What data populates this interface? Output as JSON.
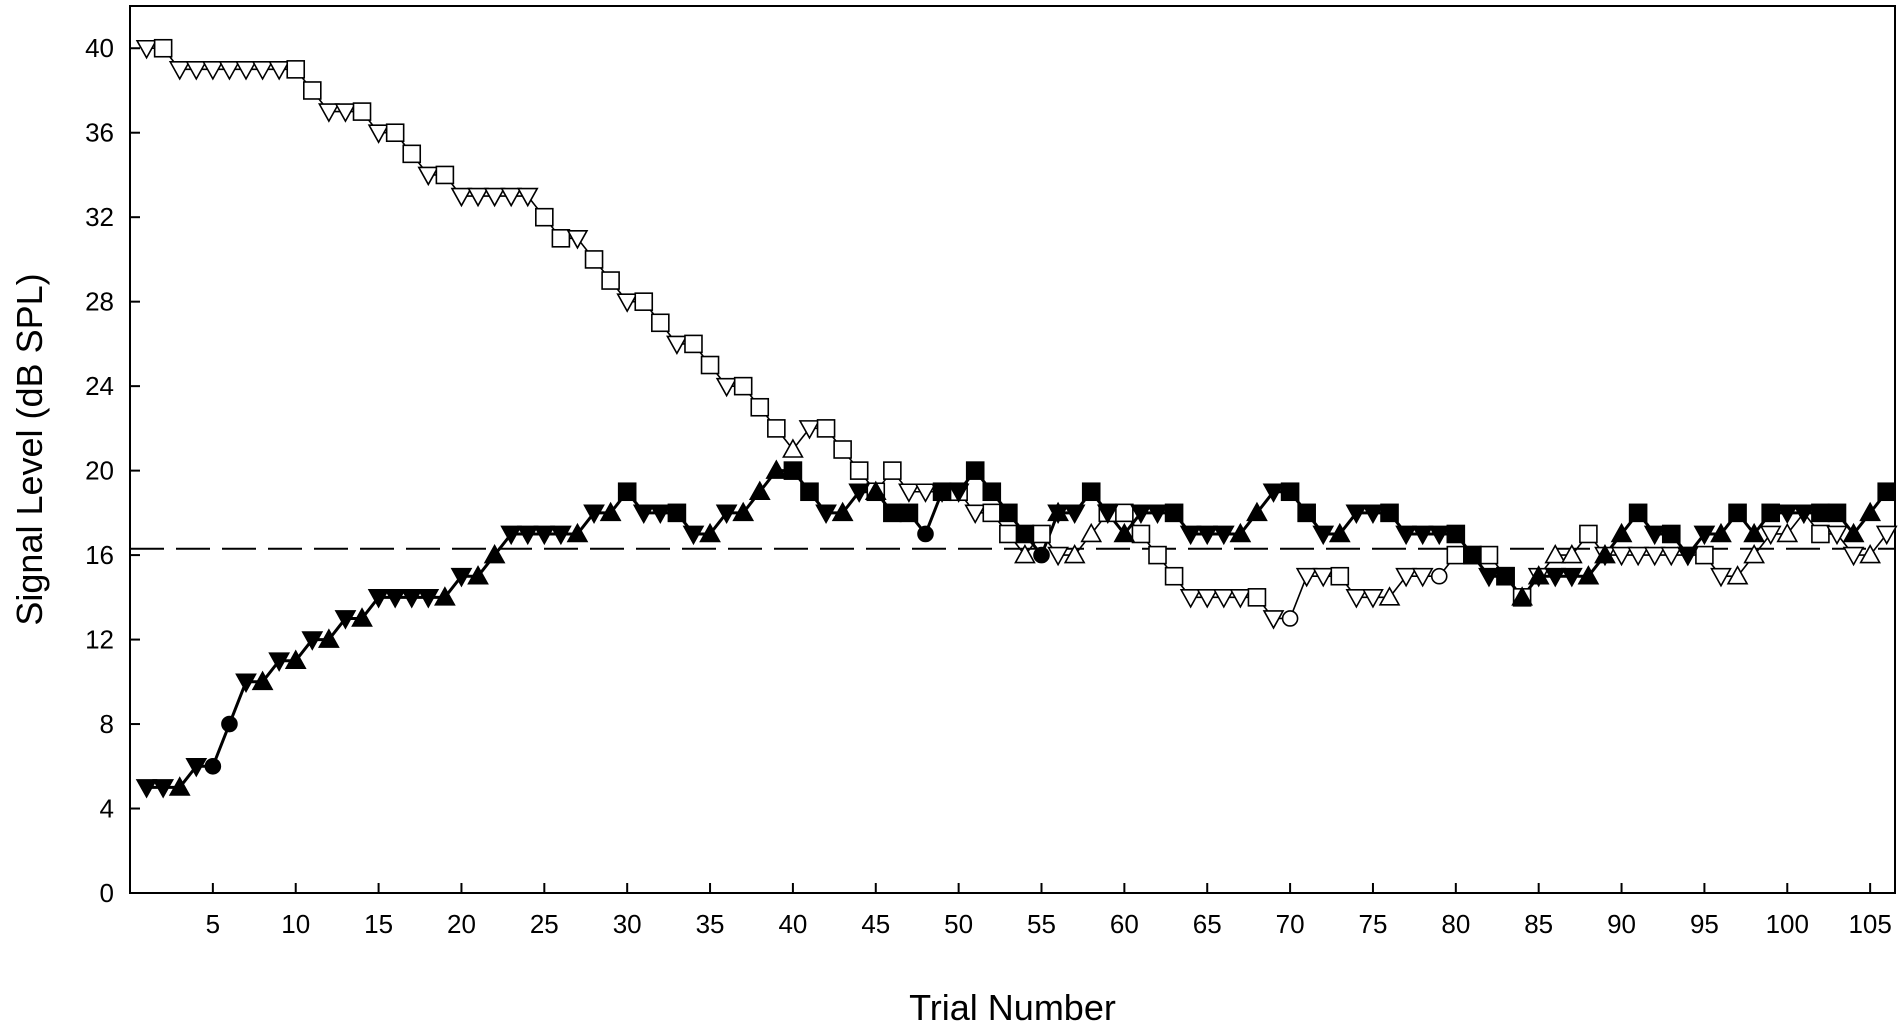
{
  "chart_data": {
    "type": "line",
    "title": "",
    "xlabel": "Trial Number",
    "ylabel": "Signal Level (dB SPL)",
    "xlim": [
      0,
      106.5
    ],
    "ylim": [
      0,
      42
    ],
    "x_ticks": [
      5,
      10,
      15,
      20,
      25,
      30,
      35,
      40,
      45,
      50,
      55,
      60,
      65,
      70,
      75,
      80,
      85,
      90,
      95,
      100,
      105
    ],
    "y_ticks": [
      0,
      4,
      8,
      12,
      16,
      20,
      24,
      28,
      32,
      36,
      40
    ],
    "x_tick_labels": [
      "5",
      "10",
      "15",
      "20",
      "25",
      "30",
      "35",
      "40",
      "45",
      "50",
      "55",
      "60",
      "65",
      "70",
      "75",
      "80",
      "85",
      "90",
      "95",
      "100",
      "105"
    ],
    "y_tick_labels": [
      "0",
      "4",
      "8",
      "12",
      "16",
      "20",
      "24",
      "28",
      "32",
      "36",
      "40"
    ],
    "grid": false,
    "reference_line": {
      "y": 16.3,
      "style": "dashed"
    },
    "series": [
      {
        "fill": "open",
        "x": [
          1,
          2,
          3,
          4,
          5,
          6,
          7,
          8,
          9,
          10,
          11,
          12,
          13,
          14,
          15,
          16,
          17,
          18,
          19,
          20,
          21,
          22,
          23,
          24,
          25,
          26,
          27,
          28,
          29,
          30,
          31,
          32,
          33,
          34,
          35,
          36,
          37,
          38,
          39,
          40,
          41,
          42,
          43,
          44,
          45,
          46,
          47,
          48,
          49,
          50,
          51,
          52,
          53,
          54,
          55,
          56,
          57,
          58,
          59,
          60,
          61,
          62,
          63,
          64,
          65,
          66,
          67,
          68,
          69,
          70,
          71,
          72,
          73,
          74,
          75,
          76,
          77,
          78,
          79,
          80,
          81,
          82,
          83,
          84,
          85,
          86,
          87,
          88,
          89,
          90,
          91,
          92,
          93,
          94,
          95,
          96,
          97,
          98,
          99,
          100,
          101,
          102,
          103,
          104,
          105,
          106
        ],
        "y": [
          40,
          40,
          39,
          39,
          39,
          39,
          39,
          39,
          39,
          39,
          38,
          37,
          37,
          37,
          36,
          36,
          35,
          34,
          34,
          33,
          33,
          33,
          33,
          33,
          32,
          31,
          31,
          30,
          29,
          28,
          28,
          27,
          26,
          26,
          25,
          24,
          24,
          23,
          22,
          21,
          22,
          22,
          21,
          20,
          19,
          20,
          19,
          19,
          19,
          19,
          18,
          18,
          17,
          16,
          17,
          16,
          16,
          17,
          18,
          18,
          17,
          16,
          15,
          14,
          14,
          14,
          14,
          14,
          13,
          13,
          15,
          15,
          15,
          14,
          14,
          14,
          15,
          15,
          15,
          16,
          16,
          16,
          15,
          14,
          15,
          16,
          16,
          17,
          16,
          16,
          16,
          16,
          16,
          16,
          16,
          15,
          15,
          16,
          17,
          17,
          18,
          17,
          17,
          16,
          16,
          17
        ],
        "markers": [
          "tri-down",
          "square",
          "tri-down",
          "tri-down",
          "tri-down",
          "tri-down",
          "tri-down",
          "tri-down",
          "tri-down",
          "square",
          "square",
          "tri-down",
          "tri-down",
          "square",
          "tri-down",
          "square",
          "square",
          "tri-down",
          "square",
          "tri-down",
          "tri-down",
          "tri-down",
          "tri-down",
          "tri-down",
          "square",
          "square",
          "tri-down",
          "square",
          "square",
          "tri-down",
          "square",
          "square",
          "tri-down",
          "square",
          "square",
          "tri-down",
          "square",
          "square",
          "square",
          "tri-up",
          "tri-down",
          "square",
          "square",
          "square",
          "square",
          "square",
          "tri-down",
          "tri-down",
          "tri-down",
          "square",
          "tri-down",
          "square",
          "square",
          "tri-up",
          "square",
          "tri-down",
          "tri-up",
          "tri-up",
          "square",
          "square",
          "square",
          "square",
          "square",
          "tri-down",
          "tri-down",
          "tri-down",
          "tri-down",
          "square",
          "tri-down",
          "circle",
          "tri-down",
          "tri-down",
          "square",
          "tri-down",
          "tri-down",
          "tri-up",
          "tri-down",
          "tri-down",
          "circle",
          "square",
          "square",
          "square",
          "square",
          "square",
          "tri-down",
          "tri-up",
          "tri-up",
          "square",
          "tri-down",
          "tri-down",
          "tri-down",
          "tri-down",
          "tri-down",
          "tri-down",
          "square",
          "tri-down",
          "tri-up",
          "tri-up",
          "tri-down",
          "tri-up",
          "tri-down",
          "square",
          "tri-down",
          "tri-down",
          "tri-up",
          "tri-down"
        ]
      },
      {
        "fill": "filled",
        "x": [
          1,
          2,
          3,
          4,
          5,
          6,
          7,
          8,
          9,
          10,
          11,
          12,
          13,
          14,
          15,
          16,
          17,
          18,
          19,
          20,
          21,
          22,
          23,
          24,
          25,
          26,
          27,
          28,
          29,
          30,
          31,
          32,
          33,
          34,
          35,
          36,
          37,
          38,
          39,
          40,
          41,
          42,
          43,
          44,
          45,
          46,
          47,
          48,
          49,
          50,
          51,
          52,
          53,
          54,
          55,
          56,
          57,
          58,
          59,
          60,
          61,
          62,
          63,
          64,
          65,
          66,
          67,
          68,
          69,
          70,
          71,
          72,
          73,
          74,
          75,
          76,
          77,
          78,
          79,
          80,
          81,
          82,
          83,
          84,
          85,
          86,
          87,
          88,
          89,
          90,
          91,
          92,
          93,
          94,
          95,
          96,
          97,
          98,
          99,
          100,
          101,
          102,
          103,
          104,
          105,
          106
        ],
        "y": [
          5,
          5,
          5,
          6,
          6,
          8,
          10,
          10,
          11,
          11,
          12,
          12,
          13,
          13,
          14,
          14,
          14,
          14,
          14,
          15,
          15,
          16,
          17,
          17,
          17,
          17,
          17,
          18,
          18,
          19,
          18,
          18,
          18,
          17,
          17,
          18,
          18,
          19,
          20,
          20,
          19,
          18,
          18,
          19,
          19,
          18,
          18,
          17,
          19,
          19,
          20,
          19,
          18,
          17,
          16,
          18,
          18,
          19,
          18,
          17,
          18,
          18,
          18,
          17,
          17,
          17,
          17,
          18,
          19,
          19,
          18,
          17,
          17,
          18,
          18,
          18,
          17,
          17,
          17,
          17,
          16,
          15,
          15,
          14,
          15,
          15,
          15,
          15,
          16,
          17,
          18,
          17,
          17,
          16,
          17,
          17,
          18,
          17,
          18,
          18,
          18,
          18,
          18,
          17,
          18,
          19
        ],
        "markers": [
          "tri-down",
          "tri-down",
          "tri-up",
          "tri-down",
          "circle",
          "circle",
          "tri-down",
          "tri-up",
          "tri-down",
          "tri-up",
          "tri-down",
          "tri-up",
          "tri-down",
          "tri-up",
          "tri-down",
          "tri-down",
          "tri-down",
          "tri-down",
          "tri-up",
          "tri-down",
          "tri-up",
          "tri-up",
          "tri-down",
          "tri-down",
          "tri-down",
          "tri-down",
          "tri-up",
          "tri-down",
          "tri-up",
          "square",
          "tri-down",
          "tri-down",
          "square",
          "tri-down",
          "tri-up",
          "tri-down",
          "tri-up",
          "tri-up",
          "tri-up",
          "square",
          "square",
          "tri-down",
          "tri-up",
          "tri-down",
          "tri-up",
          "square",
          "square",
          "circle",
          "square",
          "tri-down",
          "square",
          "square",
          "square",
          "square",
          "circle",
          "star",
          "tri-down",
          "square",
          "tri-down",
          "tri-up",
          "tri-down",
          "tri-down",
          "square",
          "tri-down",
          "tri-down",
          "tri-down",
          "tri-up",
          "tri-up",
          "tri-down",
          "square",
          "square",
          "tri-down",
          "tri-up",
          "tri-down",
          "tri-down",
          "square",
          "tri-down",
          "tri-down",
          "tri-down",
          "square",
          "square",
          "tri-down",
          "square",
          "tri-up",
          "tri-up",
          "tri-down",
          "tri-down",
          "tri-up",
          "tri-up",
          "tri-up",
          "square",
          "tri-down",
          "square",
          "tri-down",
          "tri-down",
          "tri-up",
          "square",
          "tri-up",
          "square",
          "tri-down",
          "tri-down",
          "square",
          "square",
          "tri-up",
          "tri-up",
          "square"
        ]
      }
    ]
  }
}
